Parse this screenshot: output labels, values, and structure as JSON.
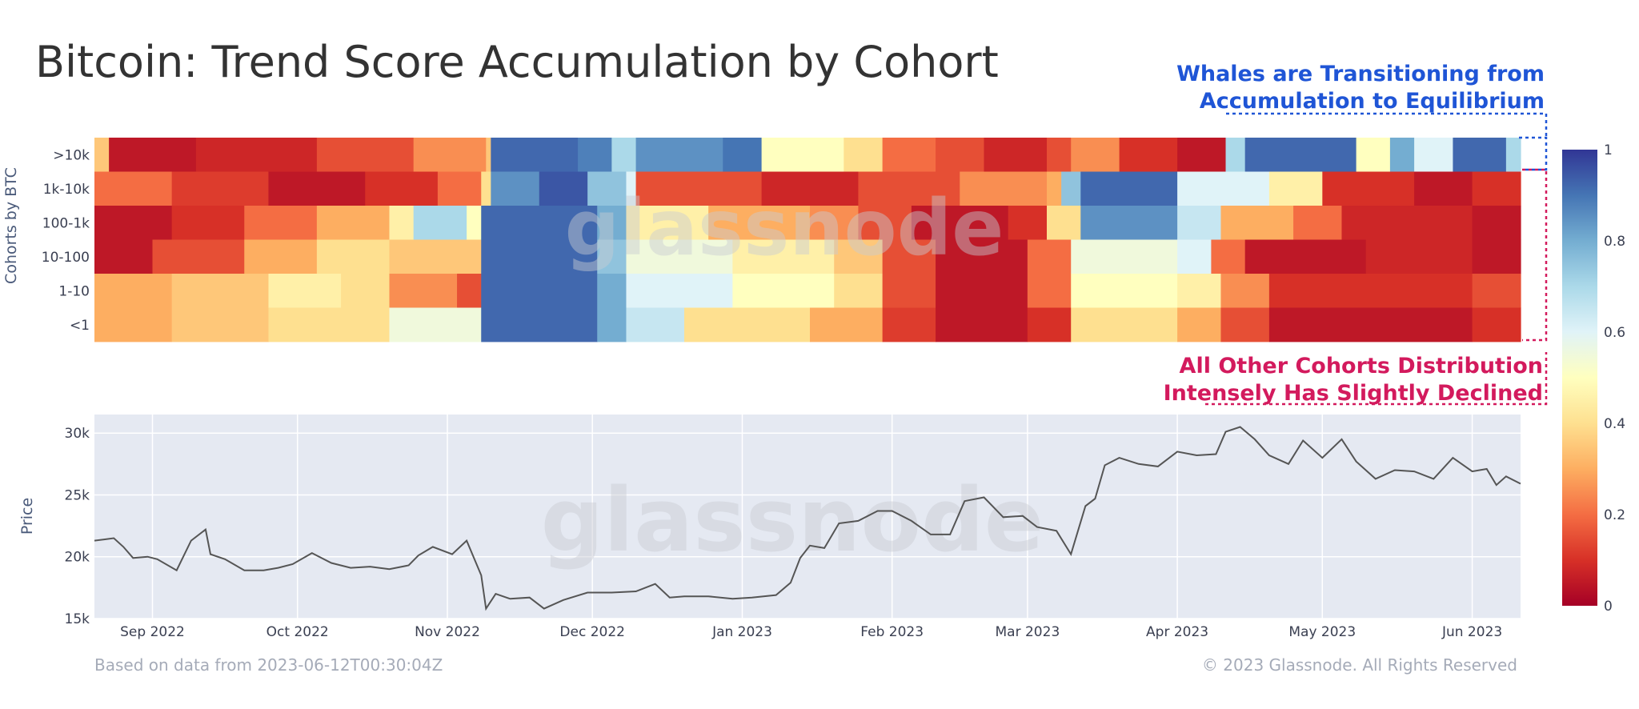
{
  "watermark": "glassnode",
  "footer": {
    "left": "Based on data from 2023-06-12T00:30:04Z",
    "right": "© 2023 Glassnode. All Rights Reserved"
  },
  "annotations": {
    "whales_line1": "Whales are Transitioning from",
    "whales_line2": "Accumulation to Equilibrium",
    "others_line1": "All Other Cohorts Distribution",
    "others_line2": "Intensely Has Slightly Declined",
    "whales_color": "#1f55d6",
    "others_color": "#d31a5d"
  },
  "chart_data": [
    {
      "type": "heatmap",
      "title": "Bitcoin: Trend Score Accumulation by Cohort",
      "ylabel": "Cohorts by BTC",
      "cohorts": [
        ">10k",
        "1k-10k",
        "100-1k",
        "10-100",
        "1-10",
        "<1"
      ],
      "x_range": [
        "2022-08-20",
        "2023-06-11"
      ],
      "colorscale": {
        "min": 0,
        "max": 1,
        "ticks": [
          "0",
          "0.2",
          "0.4",
          "0.6",
          "0.8",
          "1"
        ],
        "low_color": "#a50026",
        "mid_color": "#ffffbf",
        "high_color": "#313695"
      },
      "segments": {
        ">10k": [
          [
            "2022-08-20",
            0.35
          ],
          [
            "2022-08-23",
            0.05
          ],
          [
            "2022-09-10",
            0.08
          ],
          [
            "2022-10-05",
            0.15
          ],
          [
            "2022-10-25",
            0.25
          ],
          [
            "2022-11-09",
            0.35
          ],
          [
            "2022-11-10",
            0.92
          ],
          [
            "2022-11-28",
            0.88
          ],
          [
            "2022-12-05",
            0.7
          ],
          [
            "2022-12-10",
            0.85
          ],
          [
            "2022-12-28",
            0.9
          ],
          [
            "2023-01-05",
            0.5
          ],
          [
            "2023-01-22",
            0.4
          ],
          [
            "2023-01-30",
            0.2
          ],
          [
            "2023-02-10",
            0.15
          ],
          [
            "2023-02-20",
            0.08
          ],
          [
            "2023-03-05",
            0.15
          ],
          [
            "2023-03-10",
            0.25
          ],
          [
            "2023-03-20",
            0.1
          ],
          [
            "2023-04-01",
            0.05
          ],
          [
            "2023-04-11",
            0.7
          ],
          [
            "2023-04-15",
            0.92
          ],
          [
            "2023-05-08",
            0.5
          ],
          [
            "2023-05-15",
            0.8
          ],
          [
            "2023-05-20",
            0.6
          ],
          [
            "2023-05-28",
            0.92
          ],
          [
            "2023-06-08",
            0.7
          ]
        ],
        "1k-10k": [
          [
            "2022-08-20",
            0.2
          ],
          [
            "2022-09-05",
            0.12
          ],
          [
            "2022-09-25",
            0.05
          ],
          [
            "2022-10-15",
            0.1
          ],
          [
            "2022-10-30",
            0.2
          ],
          [
            "2022-11-08",
            0.4
          ],
          [
            "2022-11-10",
            0.85
          ],
          [
            "2022-11-20",
            0.95
          ],
          [
            "2022-11-30",
            0.75
          ],
          [
            "2022-12-08",
            0.6
          ],
          [
            "2022-12-10",
            0.15
          ],
          [
            "2023-01-05",
            0.08
          ],
          [
            "2023-01-25",
            0.15
          ],
          [
            "2023-02-15",
            0.25
          ],
          [
            "2023-03-05",
            0.3
          ],
          [
            "2023-03-08",
            0.75
          ],
          [
            "2023-03-12",
            0.92
          ],
          [
            "2023-04-01",
            0.6
          ],
          [
            "2023-04-20",
            0.45
          ],
          [
            "2023-05-01",
            0.1
          ],
          [
            "2023-05-20",
            0.05
          ],
          [
            "2023-06-01",
            0.1
          ]
        ],
        "100-1k": [
          [
            "2022-08-20",
            0.05
          ],
          [
            "2022-09-05",
            0.1
          ],
          [
            "2022-09-20",
            0.2
          ],
          [
            "2022-10-05",
            0.3
          ],
          [
            "2022-10-20",
            0.45
          ],
          [
            "2022-10-25",
            0.7
          ],
          [
            "2022-11-05",
            0.5
          ],
          [
            "2022-11-08",
            0.92
          ],
          [
            "2022-12-02",
            0.8
          ],
          [
            "2022-12-08",
            0.45
          ],
          [
            "2022-12-25",
            0.3
          ],
          [
            "2023-01-15",
            0.25
          ],
          [
            "2023-01-25",
            0.15
          ],
          [
            "2023-02-05",
            0.05
          ],
          [
            "2023-02-25",
            0.1
          ],
          [
            "2023-03-05",
            0.4
          ],
          [
            "2023-03-12",
            0.85
          ],
          [
            "2023-04-01",
            0.65
          ],
          [
            "2023-04-10",
            0.3
          ],
          [
            "2023-04-25",
            0.2
          ],
          [
            "2023-05-05",
            0.08
          ],
          [
            "2023-06-01",
            0.05
          ]
        ],
        "10-100": [
          [
            "2022-08-20",
            0.05
          ],
          [
            "2022-09-01",
            0.15
          ],
          [
            "2022-09-20",
            0.3
          ],
          [
            "2022-10-05",
            0.4
          ],
          [
            "2022-10-20",
            0.35
          ],
          [
            "2022-11-08",
            0.92
          ],
          [
            "2022-12-02",
            0.75
          ],
          [
            "2022-12-08",
            0.55
          ],
          [
            "2022-12-30",
            0.45
          ],
          [
            "2023-01-20",
            0.35
          ],
          [
            "2023-01-30",
            0.15
          ],
          [
            "2023-02-10",
            0.05
          ],
          [
            "2023-03-01",
            0.2
          ],
          [
            "2023-03-10",
            0.55
          ],
          [
            "2023-04-01",
            0.6
          ],
          [
            "2023-04-08",
            0.2
          ],
          [
            "2023-04-15",
            0.05
          ],
          [
            "2023-05-10",
            0.08
          ],
          [
            "2023-06-01",
            0.05
          ]
        ],
        "1-10": [
          [
            "2022-08-20",
            0.3
          ],
          [
            "2022-09-05",
            0.35
          ],
          [
            "2022-09-25",
            0.45
          ],
          [
            "2022-10-10",
            0.4
          ],
          [
            "2022-10-20",
            0.25
          ],
          [
            "2022-11-03",
            0.15
          ],
          [
            "2022-11-08",
            0.92
          ],
          [
            "2022-12-02",
            0.8
          ],
          [
            "2022-12-08",
            0.6
          ],
          [
            "2022-12-30",
            0.5
          ],
          [
            "2023-01-20",
            0.4
          ],
          [
            "2023-01-30",
            0.15
          ],
          [
            "2023-02-10",
            0.05
          ],
          [
            "2023-03-01",
            0.2
          ],
          [
            "2023-03-10",
            0.5
          ],
          [
            "2023-04-01",
            0.45
          ],
          [
            "2023-04-10",
            0.25
          ],
          [
            "2023-04-20",
            0.1
          ],
          [
            "2023-06-01",
            0.15
          ]
        ],
        "<1": [
          [
            "2022-08-20",
            0.3
          ],
          [
            "2022-09-05",
            0.35
          ],
          [
            "2022-09-25",
            0.4
          ],
          [
            "2022-10-20",
            0.55
          ],
          [
            "2022-11-08",
            0.92
          ],
          [
            "2022-12-02",
            0.8
          ],
          [
            "2022-12-08",
            0.65
          ],
          [
            "2022-12-20",
            0.4
          ],
          [
            "2023-01-15",
            0.3
          ],
          [
            "2023-01-30",
            0.12
          ],
          [
            "2023-02-10",
            0.05
          ],
          [
            "2023-03-01",
            0.1
          ],
          [
            "2023-03-10",
            0.4
          ],
          [
            "2023-04-01",
            0.3
          ],
          [
            "2023-04-10",
            0.15
          ],
          [
            "2023-04-20",
            0.05
          ],
          [
            "2023-06-01",
            0.1
          ]
        ]
      }
    },
    {
      "type": "line",
      "ylabel": "Price",
      "y_ticks": [
        "15k",
        "20k",
        "25k",
        "30k"
      ],
      "ylim": [
        15000,
        31500
      ],
      "x_ticks": [
        {
          "label": "Sep 2022",
          "date": "2022-09-01"
        },
        {
          "label": "Oct 2022",
          "date": "2022-10-01"
        },
        {
          "label": "Nov 2022",
          "date": "2022-11-01"
        },
        {
          "label": "Dec 2022",
          "date": "2022-12-01"
        },
        {
          "label": "Jan 2023",
          "date": "2023-01-01"
        },
        {
          "label": "Feb 2023",
          "date": "2023-02-01"
        },
        {
          "label": "Mar 2023",
          "date": "2023-03-01"
        },
        {
          "label": "Apr 2023",
          "date": "2023-04-01"
        },
        {
          "label": "May 2023",
          "date": "2023-05-01"
        },
        {
          "label": "Jun 2023",
          "date": "2023-06-01"
        }
      ],
      "x_range": [
        "2022-08-20",
        "2023-06-11"
      ],
      "line_color": "#555555",
      "series": [
        {
          "values": [
            [
              "2022-08-20",
              21300
            ],
            [
              "2022-08-22",
              21400
            ],
            [
              "2022-08-24",
              21500
            ],
            [
              "2022-08-26",
              20800
            ],
            [
              "2022-08-28",
              19900
            ],
            [
              "2022-08-31",
              20000
            ],
            [
              "2022-09-02",
              19800
            ],
            [
              "2022-09-06",
              18900
            ],
            [
              "2022-09-09",
              21300
            ],
            [
              "2022-09-12",
              22200
            ],
            [
              "2022-09-13",
              20200
            ],
            [
              "2022-09-16",
              19800
            ],
            [
              "2022-09-20",
              18900
            ],
            [
              "2022-09-24",
              18900
            ],
            [
              "2022-09-27",
              19100
            ],
            [
              "2022-09-30",
              19400
            ],
            [
              "2022-10-04",
              20300
            ],
            [
              "2022-10-08",
              19500
            ],
            [
              "2022-10-12",
              19100
            ],
            [
              "2022-10-16",
              19200
            ],
            [
              "2022-10-20",
              19000
            ],
            [
              "2022-10-24",
              19300
            ],
            [
              "2022-10-26",
              20100
            ],
            [
              "2022-10-29",
              20800
            ],
            [
              "2022-11-02",
              20200
            ],
            [
              "2022-11-05",
              21300
            ],
            [
              "2022-11-08",
              18500
            ],
            [
              "2022-11-09",
              15800
            ],
            [
              "2022-11-11",
              17000
            ],
            [
              "2022-11-14",
              16600
            ],
            [
              "2022-11-18",
              16700
            ],
            [
              "2022-11-21",
              15800
            ],
            [
              "2022-11-25",
              16500
            ],
            [
              "2022-11-30",
              17100
            ],
            [
              "2022-12-05",
              17100
            ],
            [
              "2022-12-10",
              17200
            ],
            [
              "2022-12-14",
              17800
            ],
            [
              "2022-12-17",
              16700
            ],
            [
              "2022-12-20",
              16800
            ],
            [
              "2022-12-25",
              16800
            ],
            [
              "2022-12-30",
              16600
            ],
            [
              "2023-01-03",
              16700
            ],
            [
              "2023-01-08",
              16900
            ],
            [
              "2023-01-11",
              17900
            ],
            [
              "2023-01-13",
              19900
            ],
            [
              "2023-01-15",
              20900
            ],
            [
              "2023-01-18",
              20700
            ],
            [
              "2023-01-21",
              22700
            ],
            [
              "2023-01-25",
              22900
            ],
            [
              "2023-01-29",
              23700
            ],
            [
              "2023-02-01",
              23700
            ],
            [
              "2023-02-05",
              22900
            ],
            [
              "2023-02-09",
              21800
            ],
            [
              "2023-02-13",
              21800
            ],
            [
              "2023-02-16",
              24500
            ],
            [
              "2023-02-20",
              24800
            ],
            [
              "2023-02-24",
              23200
            ],
            [
              "2023-02-28",
              23300
            ],
            [
              "2023-03-03",
              22400
            ],
            [
              "2023-03-07",
              22100
            ],
            [
              "2023-03-10",
              20200
            ],
            [
              "2023-03-13",
              24100
            ],
            [
              "2023-03-15",
              24700
            ],
            [
              "2023-03-17",
              27400
            ],
            [
              "2023-03-20",
              28000
            ],
            [
              "2023-03-24",
              27500
            ],
            [
              "2023-03-28",
              27300
            ],
            [
              "2023-04-01",
              28500
            ],
            [
              "2023-04-05",
              28200
            ],
            [
              "2023-04-09",
              28300
            ],
            [
              "2023-04-11",
              30100
            ],
            [
              "2023-04-14",
              30500
            ],
            [
              "2023-04-17",
              29500
            ],
            [
              "2023-04-20",
              28200
            ],
            [
              "2023-04-24",
              27500
            ],
            [
              "2023-04-27",
              29400
            ],
            [
              "2023-05-01",
              28000
            ],
            [
              "2023-05-05",
              29500
            ],
            [
              "2023-05-08",
              27700
            ],
            [
              "2023-05-12",
              26300
            ],
            [
              "2023-05-16",
              27000
            ],
            [
              "2023-05-20",
              26900
            ],
            [
              "2023-05-24",
              26300
            ],
            [
              "2023-05-28",
              28000
            ],
            [
              "2023-06-01",
              26900
            ],
            [
              "2023-06-04",
              27100
            ],
            [
              "2023-06-06",
              25800
            ],
            [
              "2023-06-08",
              26500
            ],
            [
              "2023-06-11",
              25900
            ]
          ]
        }
      ]
    }
  ]
}
